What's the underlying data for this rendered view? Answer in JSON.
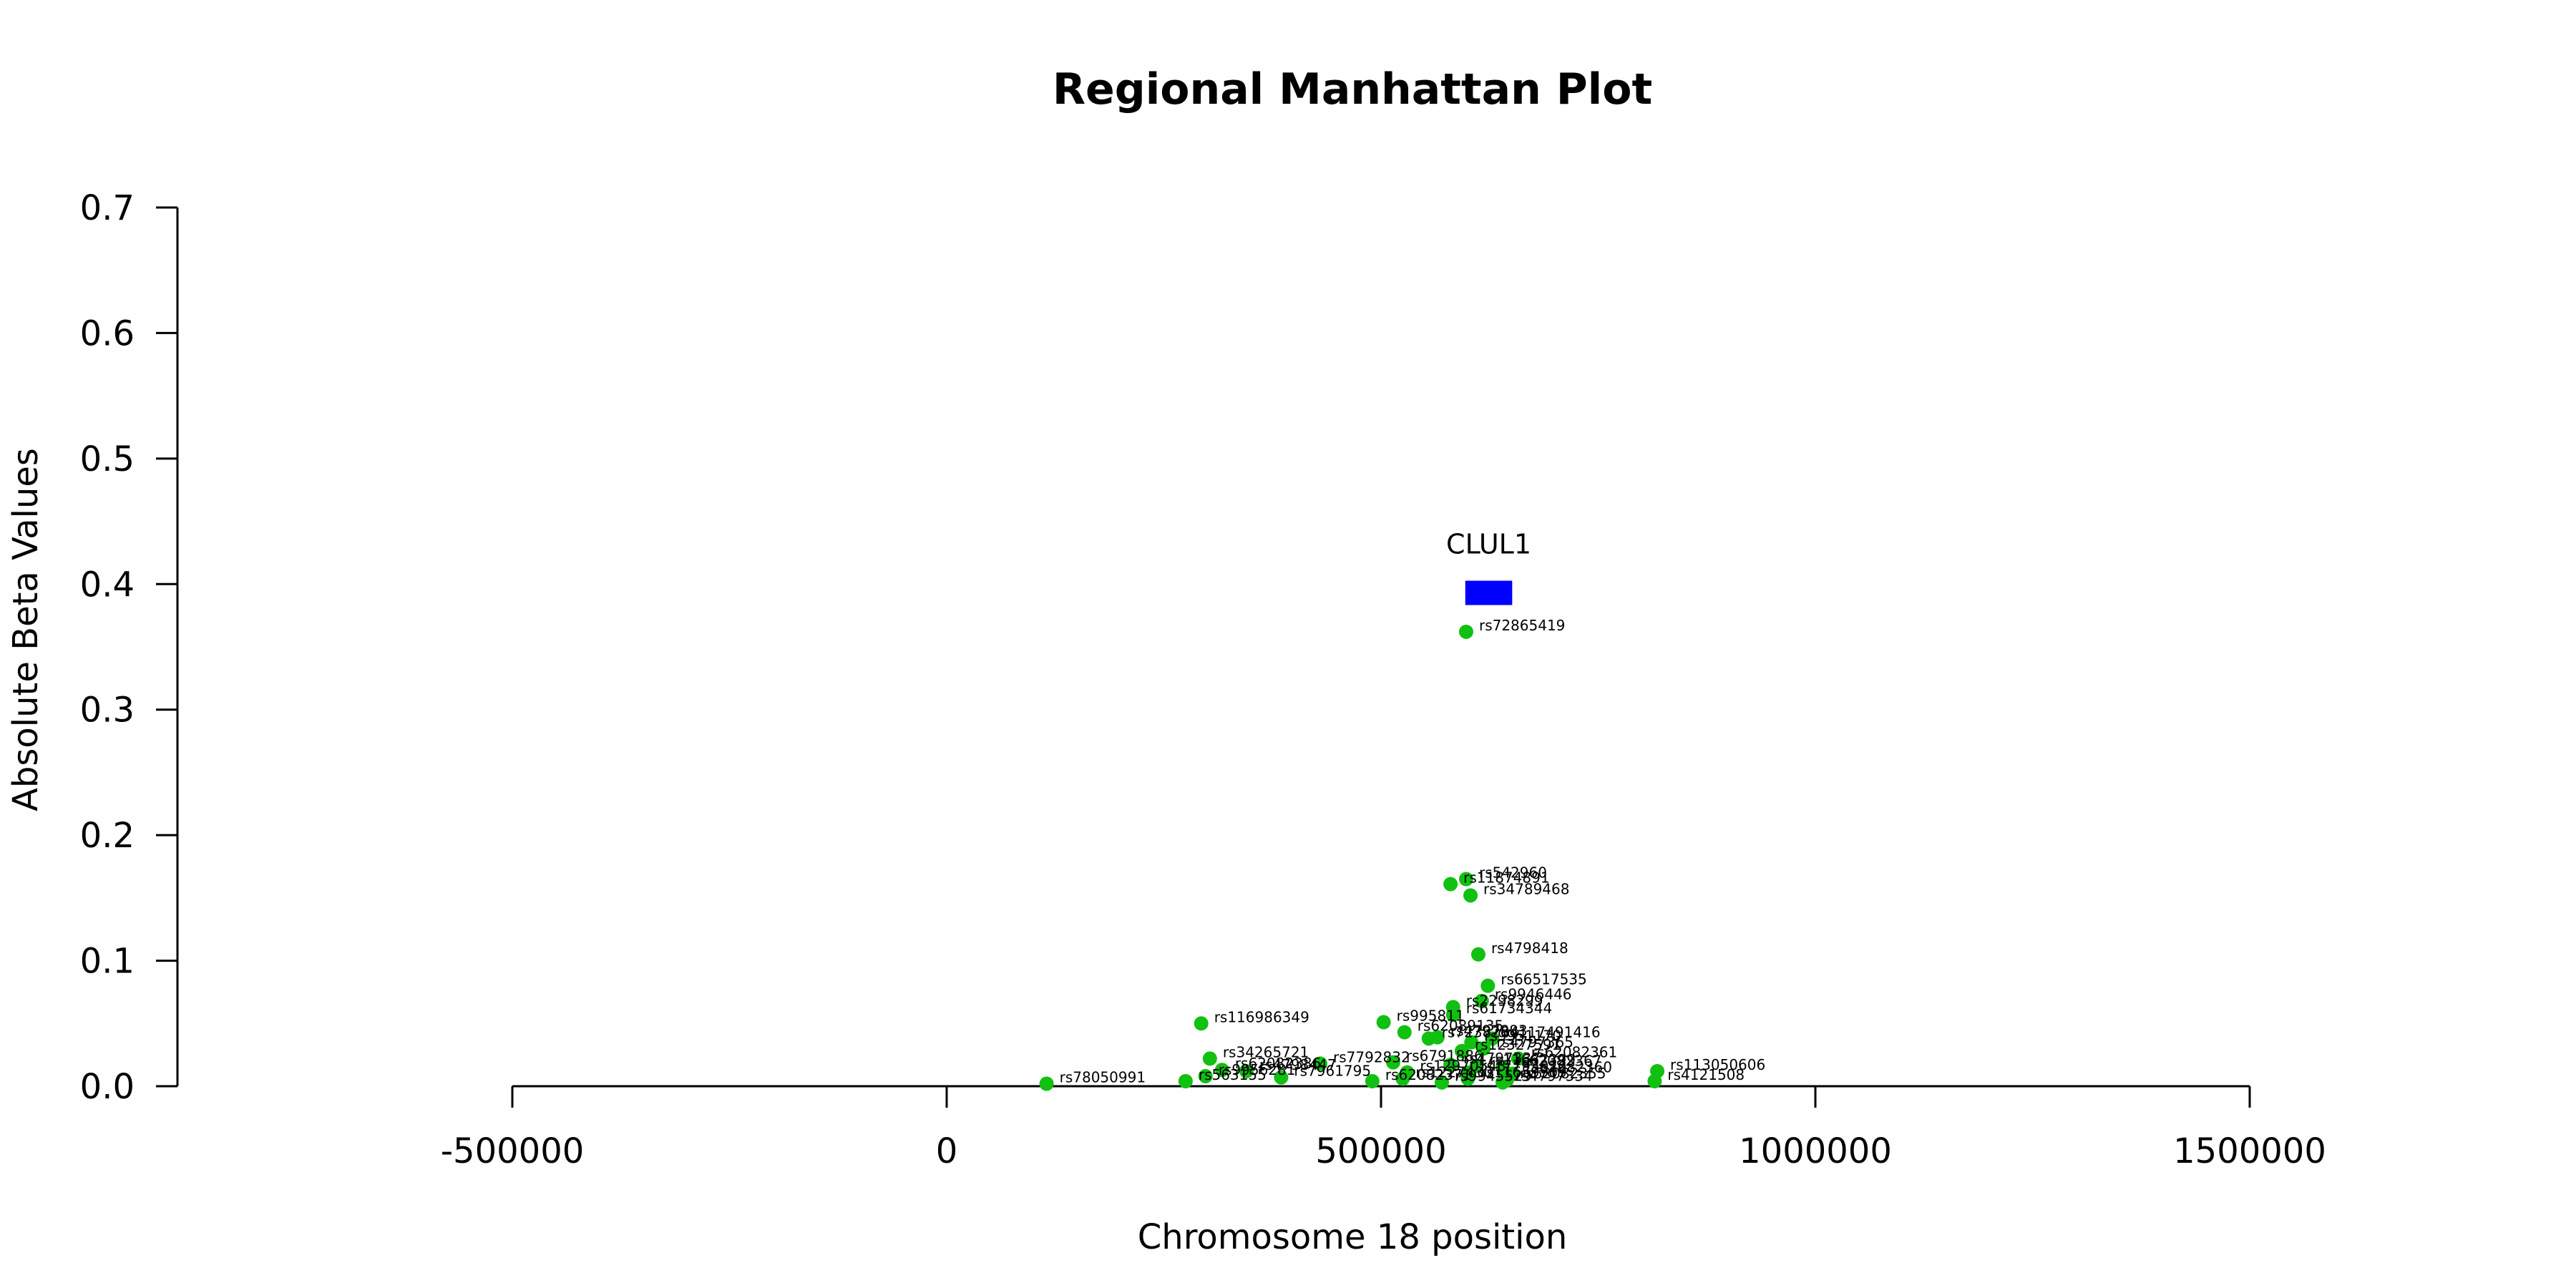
{
  "chart_data": {
    "type": "scatter",
    "title": "Regional Manhattan Plot",
    "xlabel": "Chromosome 18 position",
    "ylabel": "Absolute Beta Values",
    "xlim": [
      -500000,
      1500000
    ],
    "ylim": [
      0,
      0.7
    ],
    "x_ticks": [
      -500000,
      0,
      500000,
      1000000,
      1500000
    ],
    "x_tick_labels": [
      "-500000",
      "0",
      "500000",
      "1000000",
      "1500000"
    ],
    "y_ticks": [
      0.0,
      0.1,
      0.2,
      0.3,
      0.4,
      0.5,
      0.6,
      0.7
    ],
    "y_tick_labels": [
      "0.0",
      "0.1",
      "0.2",
      "0.3",
      "0.4",
      "0.5",
      "0.6",
      "0.7"
    ],
    "grid": false,
    "point_color": "#11c011",
    "gene_color": "#0000ff",
    "genes": [
      {
        "name": "CLUL1",
        "start": 597000,
        "end": 651000,
        "y": 0.393
      }
    ],
    "points": [
      {
        "label": "rs72865419",
        "x": 598000,
        "y": 0.362
      },
      {
        "label": "rs542960",
        "x": 598000,
        "y": 0.165
      },
      {
        "label": "rs11874891",
        "x": 580000,
        "y": 0.161
      },
      {
        "label": "rs34789468",
        "x": 603000,
        "y": 0.152
      },
      {
        "label": "rs4798418",
        "x": 612000,
        "y": 0.105
      },
      {
        "label": "rs66517535",
        "x": 623000,
        "y": 0.08
      },
      {
        "label": "rs9946446",
        "x": 616000,
        "y": 0.068
      },
      {
        "label": "rs2298299",
        "x": 583000,
        "y": 0.063
      },
      {
        "label": "rs61734344",
        "x": 583000,
        "y": 0.057
      },
      {
        "label": "rs995811",
        "x": 503000,
        "y": 0.051
      },
      {
        "label": "rs116986349",
        "x": 293000,
        "y": 0.05
      },
      {
        "label": "rs62089135",
        "x": 527000,
        "y": 0.043
      },
      {
        "label": "rs7238284",
        "x": 555000,
        "y": 0.038
      },
      {
        "label": "rs4797883",
        "x": 565000,
        "y": 0.039
      },
      {
        "label": "rs117491416",
        "x": 628000,
        "y": 0.038
      },
      {
        "label": "rs9951170",
        "x": 604000,
        "y": 0.035
      },
      {
        "label": "rs4797365",
        "x": 618000,
        "y": 0.03
      },
      {
        "label": "rs12327591",
        "x": 593000,
        "y": 0.028
      },
      {
        "label": "rs34265721",
        "x": 303000,
        "y": 0.022
      },
      {
        "label": "rs62082361",
        "x": 658000,
        "y": 0.022
      },
      {
        "label": "rs7792832",
        "x": 430000,
        "y": 0.018
      },
      {
        "label": "rs6791886",
        "x": 514000,
        "y": 0.019
      },
      {
        "label": "rs4797337",
        "x": 580000,
        "y": 0.017
      },
      {
        "label": "rs11662399",
        "x": 610000,
        "y": 0.016
      },
      {
        "label": "rs62082367",
        "x": 640000,
        "y": 0.015
      },
      {
        "label": "rs113050606",
        "x": 818000,
        "y": 0.012
      },
      {
        "label": "rs62082386",
        "x": 317000,
        "y": 0.013
      },
      {
        "label": "rs4798447",
        "x": 345000,
        "y": 0.012
      },
      {
        "label": "rs12970543",
        "x": 530000,
        "y": 0.011
      },
      {
        "label": "rs17793012",
        "x": 600000,
        "y": 0.011
      },
      {
        "label": "rs62082360",
        "x": 652000,
        "y": 0.01
      },
      {
        "label": "rs4121508",
        "x": 815000,
        "y": 0.004
      },
      {
        "label": "rs9956281",
        "x": 298000,
        "y": 0.008
      },
      {
        "label": "rs7961795",
        "x": 385000,
        "y": 0.007
      },
      {
        "label": "rs1227430",
        "x": 525000,
        "y": 0.006
      },
      {
        "label": "rs11659909",
        "x": 600000,
        "y": 0.006
      },
      {
        "label": "rs62082355",
        "x": 645000,
        "y": 0.005
      },
      {
        "label": "rs563155",
        "x": 275000,
        "y": 0.004
      },
      {
        "label": "rs78050991",
        "x": 115000,
        "y": 0.002
      },
      {
        "label": "rs62082371",
        "x": 490000,
        "y": 0.004
      },
      {
        "label": "rs9945529",
        "x": 570000,
        "y": 0.003
      },
      {
        "label": "rs4797334",
        "x": 640000,
        "y": 0.003
      }
    ]
  }
}
